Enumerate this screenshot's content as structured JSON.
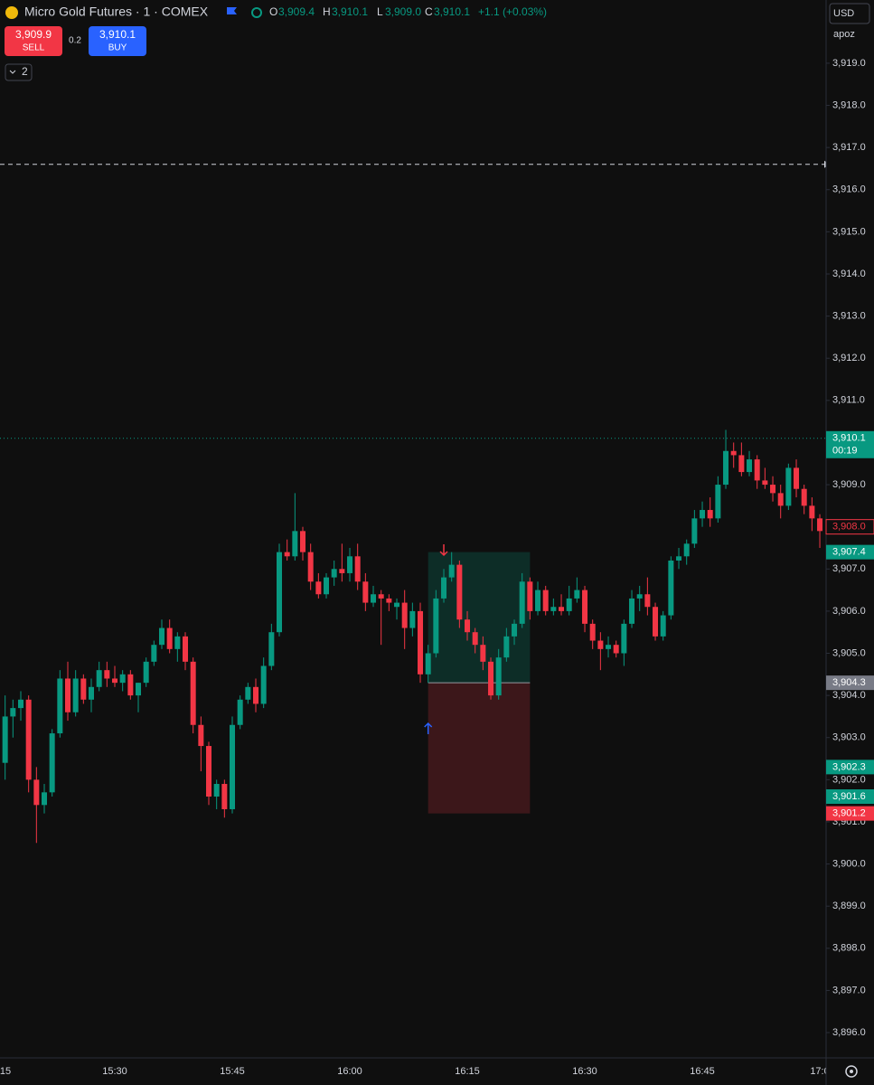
{
  "header": {
    "symbol": "Micro Gold Futures · 1 · COMEX",
    "o_key": "O",
    "o": "3,909.4",
    "h_key": "H",
    "h": "3,910.1",
    "l_key": "L",
    "l": "3,909.0",
    "c_key": "C",
    "c": "3,910.1",
    "change": "+1.1 (+0.03%)",
    "sell_price": "3,909.9",
    "sell": "SELL",
    "spread": "0.2",
    "buy_price": "3,910.1",
    "buy": "BUY",
    "indicators": "2",
    "currency": "USD",
    "account": "apoz"
  },
  "chart_data": {
    "type": "candlestick",
    "up_color": "#089981",
    "down_color": "#f23645",
    "categories": [
      "15",
      null,
      null,
      null,
      null,
      null,
      null,
      null,
      null,
      null,
      null,
      null,
      null,
      null,
      null,
      "15:30",
      null,
      null,
      null,
      null,
      null,
      null,
      null,
      null,
      null,
      null,
      null,
      null,
      null,
      null,
      "15:45",
      null,
      null,
      null,
      null,
      null,
      null,
      null,
      null,
      null,
      null,
      null,
      null,
      null,
      null,
      "16:00",
      null,
      null,
      null,
      null,
      null,
      null,
      null,
      null,
      null,
      null,
      null,
      null,
      null,
      null,
      "16:15",
      null,
      null,
      null,
      null,
      null,
      null,
      null,
      null,
      null,
      null,
      null,
      null,
      null,
      null,
      "16:30",
      null,
      null,
      null,
      null,
      null,
      null,
      null,
      null,
      null,
      null,
      null,
      null,
      null,
      null,
      "16:45",
      null,
      null,
      null,
      null,
      null,
      null,
      null,
      null,
      null,
      null,
      null,
      null,
      null,
      null,
      "17:0"
    ],
    "open": [
      null,
      3902.4,
      3903.5,
      3903.7,
      3903.9,
      3902.0,
      3901.4,
      3901.7,
      3903.1,
      3904.4,
      3903.6,
      3904.4,
      3903.9,
      3904.2,
      3904.6,
      3904.4,
      3904.3,
      3904.5,
      3904.0,
      3904.3,
      3904.8,
      3905.2,
      3905.6,
      3905.1,
      3905.4,
      3904.8,
      3903.3,
      3902.8,
      3901.6,
      3901.9,
      3901.3,
      3903.3,
      3903.9,
      3904.2,
      3903.8,
      3904.7,
      3905.5,
      3907.4,
      3907.3,
      3907.9,
      3907.4,
      3906.7,
      3906.4,
      3906.8,
      3907.0,
      3906.9,
      3907.3,
      3906.7,
      3906.2,
      3906.4,
      3906.3,
      3906.1,
      3906.2,
      3905.6,
      3906.0,
      3904.5,
      3905.0,
      3906.3,
      3906.8,
      3907.1,
      3905.8,
      3905.5,
      3905.2,
      3904.8,
      3904.0,
      3904.9,
      3905.4,
      3905.7,
      3906.7,
      3906.0,
      3906.5,
      3906.0,
      3906.1,
      3906.0,
      3906.3,
      3906.5,
      3905.7,
      3905.3,
      3905.1,
      3905.2,
      3905.0,
      3905.7,
      3906.3,
      3906.4,
      3906.1,
      3905.4,
      3905.9,
      3907.2,
      3907.3,
      3907.6,
      3908.2,
      3908.4,
      3908.2,
      3909.0,
      3909.8,
      3909.7,
      3909.3,
      3909.6,
      3909.1,
      3909.0,
      3908.8,
      3908.5,
      3909.4,
      3908.9,
      3908.5,
      3908.2
    ],
    "high": [
      null,
      3904.0,
      3903.9,
      3904.1,
      3904.0,
      3902.3,
      3901.9,
      3903.2,
      3904.6,
      3904.8,
      3904.6,
      3904.5,
      3904.4,
      3904.8,
      3904.8,
      3904.7,
      3904.6,
      3904.6,
      3904.3,
      3904.9,
      3905.3,
      3905.8,
      3905.8,
      3905.5,
      3905.5,
      3904.9,
      3903.5,
      3902.9,
      3902.0,
      3902.0,
      3903.5,
      3904.0,
      3904.3,
      3904.4,
      3904.9,
      3905.7,
      3907.6,
      3907.7,
      3908.8,
      3908.0,
      3907.6,
      3906.9,
      3906.9,
      3907.2,
      3907.6,
      3907.5,
      3907.6,
      3906.9,
      3906.6,
      3906.5,
      3906.4,
      3906.3,
      3906.5,
      3906.2,
      3906.2,
      3905.2,
      3906.5,
      3907.0,
      3907.4,
      3907.2,
      3906.0,
      3905.6,
      3905.4,
      3904.9,
      3905.1,
      3905.6,
      3905.8,
      3906.9,
      3906.8,
      3906.7,
      3906.6,
      3906.3,
      3906.4,
      3906.6,
      3906.8,
      3906.6,
      3905.8,
      3905.5,
      3905.4,
      3905.3,
      3905.8,
      3906.5,
      3906.6,
      3906.8,
      3906.2,
      3906.0,
      3907.3,
      3907.5,
      3907.7,
      3908.4,
      3908.6,
      3908.7,
      3909.2,
      3910.3,
      3910.0,
      3910.0,
      3909.8,
      3909.7,
      3909.4,
      3909.2,
      3909.0,
      3909.5,
      3909.6,
      3909.0,
      3908.7,
      3908.3
    ],
    "low": [
      null,
      3902.0,
      3903.0,
      3903.4,
      3901.7,
      3900.5,
      3901.2,
      3901.6,
      3903.0,
      3903.4,
      3903.5,
      3903.8,
      3903.6,
      3904.1,
      3904.2,
      3904.2,
      3904.1,
      3903.9,
      3903.6,
      3904.2,
      3904.7,
      3905.1,
      3905.0,
      3904.8,
      3904.6,
      3903.1,
      3902.2,
      3901.4,
      3901.3,
      3901.1,
      3901.2,
      3903.2,
      3903.8,
      3903.6,
      3903.7,
      3904.6,
      3905.4,
      3907.2,
      3907.2,
      3907.2,
      3906.5,
      3906.3,
      3906.3,
      3906.6,
      3906.7,
      3906.7,
      3906.5,
      3906.0,
      3906.1,
      3905.2,
      3906.0,
      3905.8,
      3905.1,
      3905.4,
      3904.3,
      3904.3,
      3904.9,
      3906.2,
      3906.7,
      3905.6,
      3905.3,
      3905.0,
      3904.6,
      3903.9,
      3903.9,
      3904.8,
      3905.2,
      3905.6,
      3905.8,
      3905.9,
      3905.9,
      3905.9,
      3905.9,
      3905.9,
      3906.2,
      3905.5,
      3905.1,
      3904.6,
      3904.9,
      3904.9,
      3904.7,
      3905.6,
      3906.0,
      3905.9,
      3905.3,
      3905.3,
      3905.8,
      3907.0,
      3907.1,
      3907.5,
      3908.0,
      3908.0,
      3908.1,
      3908.9,
      3909.4,
      3909.2,
      3909.2,
      3908.9,
      3908.9,
      3908.6,
      3908.2,
      3908.4,
      3908.7,
      3908.3,
      3907.9,
      3907.5
    ],
    "close": [
      null,
      3903.5,
      3903.7,
      3903.9,
      3902.0,
      3901.4,
      3901.7,
      3903.1,
      3904.4,
      3903.6,
      3904.4,
      3903.9,
      3904.2,
      3904.6,
      3904.4,
      3904.3,
      3904.5,
      3904.0,
      3904.3,
      3904.8,
      3905.2,
      3905.6,
      3905.1,
      3905.4,
      3904.8,
      3903.3,
      3902.8,
      3901.6,
      3901.9,
      3901.3,
      3903.3,
      3903.9,
      3904.2,
      3903.8,
      3904.7,
      3905.5,
      3907.4,
      3907.3,
      3907.9,
      3907.4,
      3906.7,
      3906.4,
      3906.8,
      3907.0,
      3906.9,
      3907.3,
      3906.7,
      3906.2,
      3906.4,
      3906.3,
      3906.2,
      3906.2,
      3905.6,
      3906.0,
      3904.5,
      3905.0,
      3906.3,
      3906.8,
      3907.1,
      3905.8,
      3905.5,
      3905.2,
      3904.8,
      3904.0,
      3904.9,
      3905.4,
      3905.7,
      3906.7,
      3906.0,
      3906.5,
      3906.0,
      3906.1,
      3906.0,
      3906.3,
      3906.5,
      3905.7,
      3905.3,
      3905.1,
      3905.2,
      3905.0,
      3905.7,
      3906.3,
      3906.4,
      3906.1,
      3905.4,
      3905.9,
      3907.2,
      3907.3,
      3907.6,
      3908.2,
      3908.4,
      3908.2,
      3909.0,
      3909.8,
      3909.7,
      3909.3,
      3909.6,
      3909.1,
      3909.0,
      3908.8,
      3908.5,
      3909.4,
      3908.9,
      3908.5,
      3908.2,
      3907.9
    ],
    "ylim": [
      3895.4,
      3920.5
    ],
    "yticks": [
      {
        "value": 3896,
        "label": "3,896.0"
      },
      {
        "value": 3897,
        "label": "3,897.0"
      },
      {
        "value": 3898,
        "label": "3,898.0"
      },
      {
        "value": 3899,
        "label": "3,899.0"
      },
      {
        "value": 3900,
        "label": "3,900.0"
      },
      {
        "value": 3901,
        "label": "3,901.0"
      },
      {
        "value": 3902,
        "label": "3,902.0"
      },
      {
        "value": 3903,
        "label": "3,903.0"
      },
      {
        "value": 3904,
        "label": "3,904.0"
      },
      {
        "value": 3905,
        "label": "3,905.0"
      },
      {
        "value": 3906,
        "label": "3,906.0"
      },
      {
        "value": 3907,
        "label": "3,907.0"
      },
      {
        "value": 3908,
        "label": "3,908.0"
      },
      {
        "value": 3909,
        "label": "3,909.0"
      },
      {
        "value": 3910,
        "label": "3,910.0"
      },
      {
        "value": 3911,
        "label": "3,911.0"
      },
      {
        "value": 3912,
        "label": "3,912.0"
      },
      {
        "value": 3913,
        "label": "3,913.0"
      },
      {
        "value": 3914,
        "label": "3,914.0"
      },
      {
        "value": 3915,
        "label": "3,915.0"
      },
      {
        "value": 3916,
        "label": "3,916.0"
      },
      {
        "value": 3917,
        "label": "3,917.0"
      },
      {
        "value": 3918,
        "label": "3,918.0"
      },
      {
        "value": 3919,
        "label": "3,919.0"
      }
    ],
    "current_price": 3910.1,
    "alert_line": 3916.6,
    "position": {
      "from": 55,
      "to": 68,
      "entry": 3904.3,
      "target": 3907.4,
      "stop": 3901.2
    },
    "price_labels": [
      {
        "value": 3910.1,
        "label": "3,910.1",
        "sub": "00:19",
        "color": "#089981",
        "style": "fill"
      },
      {
        "value": 3908.0,
        "label": "3,908.0",
        "color": "#f23645",
        "style": "outline"
      },
      {
        "value": 3907.4,
        "label": "3,907.4",
        "color": "#089981",
        "style": "fill"
      },
      {
        "value": 3904.3,
        "label": "3,904.3",
        "color": "#787b86",
        "style": "fill"
      },
      {
        "value": 3902.3,
        "label": "3,902.3",
        "color": "#089981",
        "style": "fill"
      },
      {
        "value": 3901.6,
        "label": "3,901.6",
        "color": "#089981",
        "style": "fill"
      },
      {
        "value": 3901.2,
        "label": "3,901.2",
        "color": "#f23645",
        "style": "fill"
      }
    ]
  }
}
